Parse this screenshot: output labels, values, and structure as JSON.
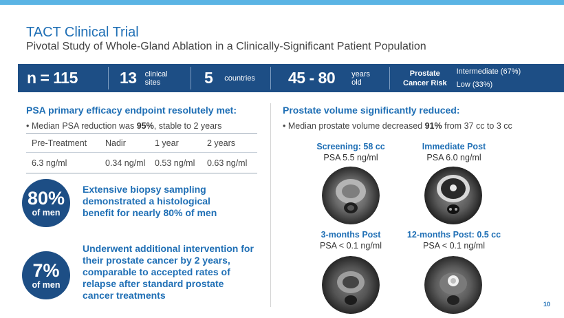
{
  "header": {
    "title": "TACT Clinical Trial",
    "subtitle": "Pivotal Study of Whole-Gland Ablation in a Clinically-Significant Patient Population"
  },
  "stats": {
    "n_label": "n = 115",
    "sites_value": "13",
    "sites_label_1": "clinical",
    "sites_label_2": "sites",
    "countries_value": "5",
    "countries_label": "countries",
    "age_value": "45 - 80",
    "age_label_1": "years",
    "age_label_2": "old",
    "risk_label_1": "Prostate",
    "risk_label_2": "Cancer Risk",
    "risk_intermediate": "Intermediate (67%)",
    "risk_low": "Low (33%)"
  },
  "psa": {
    "heading": "PSA primary efficacy endpoint resolutely met:",
    "bullet_pre": "Median PSA reduction was ",
    "bullet_bold": "95%",
    "bullet_post": ", stable to 2 years",
    "columns": [
      "Pre-Treatment",
      "Nadir",
      "1 year",
      "2 years"
    ],
    "values": [
      "6.3 ng/ml",
      "0.34 ng/ml",
      "0.53 ng/ml",
      "0.63 ng/ml"
    ]
  },
  "biopsy": {
    "percent": "80%",
    "of_men": "of men",
    "text": "Extensive biopsy sampling demonstrated a histological benefit for nearly 80% of men"
  },
  "intervention": {
    "percent": "7%",
    "of_men": "of men",
    "text": "Underwent additional intervention for their prostate cancer by 2 years, comparable to accepted rates of relapse after standard prostate cancer treatments"
  },
  "volume": {
    "heading": "Prostate volume significantly reduced:",
    "bullet_pre": "Median prostate volume decreased ",
    "bullet_bold": "91%",
    "bullet_post": " from 37 cc to 3 cc"
  },
  "scans": [
    {
      "title": "Screening: 58 cc",
      "psa": "PSA 5.5 ng/ml"
    },
    {
      "title": "Immediate Post",
      "psa": "PSA 6.0 ng/ml"
    },
    {
      "title": "3-months Post",
      "psa": "PSA < 0.1 ng/ml"
    },
    {
      "title": "12-months Post: 0.5 cc",
      "psa": "PSA < 0.1 ng/ml"
    }
  ],
  "page_number": "10",
  "colors": {
    "brand_blue": "#1d4e85",
    "accent_blue": "#1f6fb5",
    "top_bar": "#5bb4e4"
  }
}
